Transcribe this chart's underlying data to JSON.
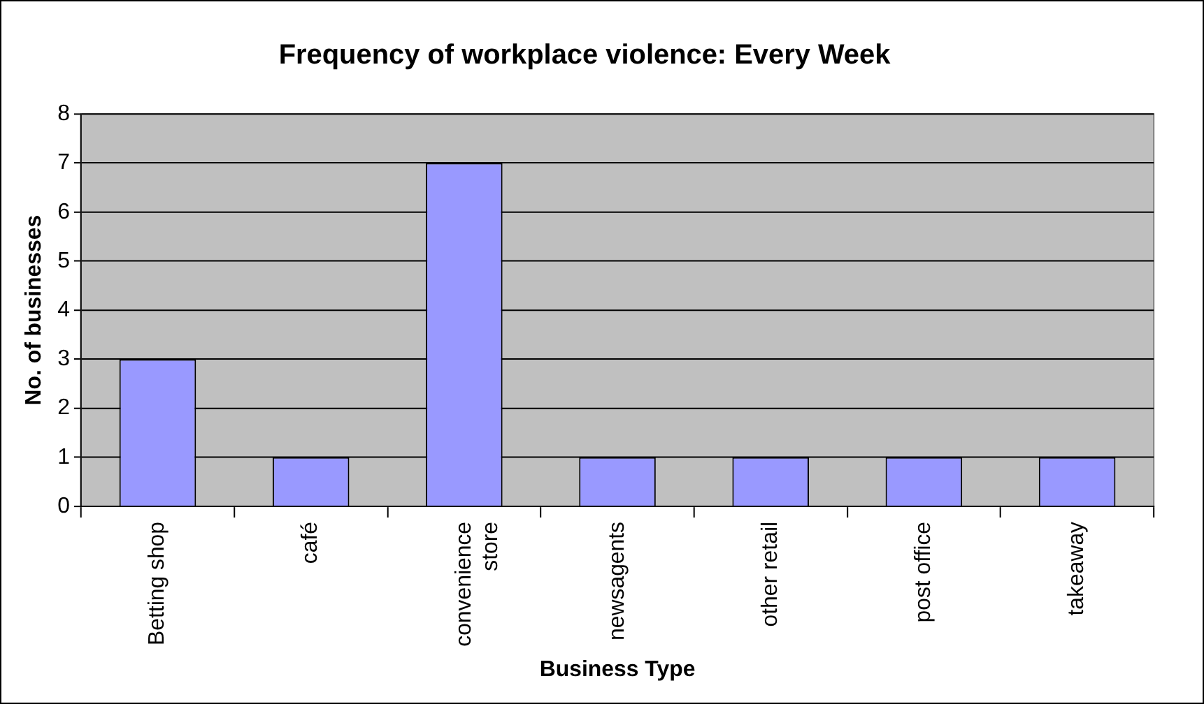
{
  "chart_data": {
    "type": "bar",
    "title": "Frequency of workplace violence: Every Week",
    "xlabel": "Business Type",
    "ylabel": "No. of businesses",
    "categories": [
      "Betting shop",
      "café",
      "convenience store",
      "newsagents",
      "other retail",
      "post office",
      "takeaway"
    ],
    "values": [
      3,
      1,
      7,
      1,
      1,
      1,
      1
    ],
    "color": "#9999ff",
    "ylim": [
      0,
      8
    ],
    "yticks": [
      0,
      1,
      2,
      3,
      4,
      5,
      6,
      7,
      8
    ],
    "grid": "y",
    "legend": false
  }
}
